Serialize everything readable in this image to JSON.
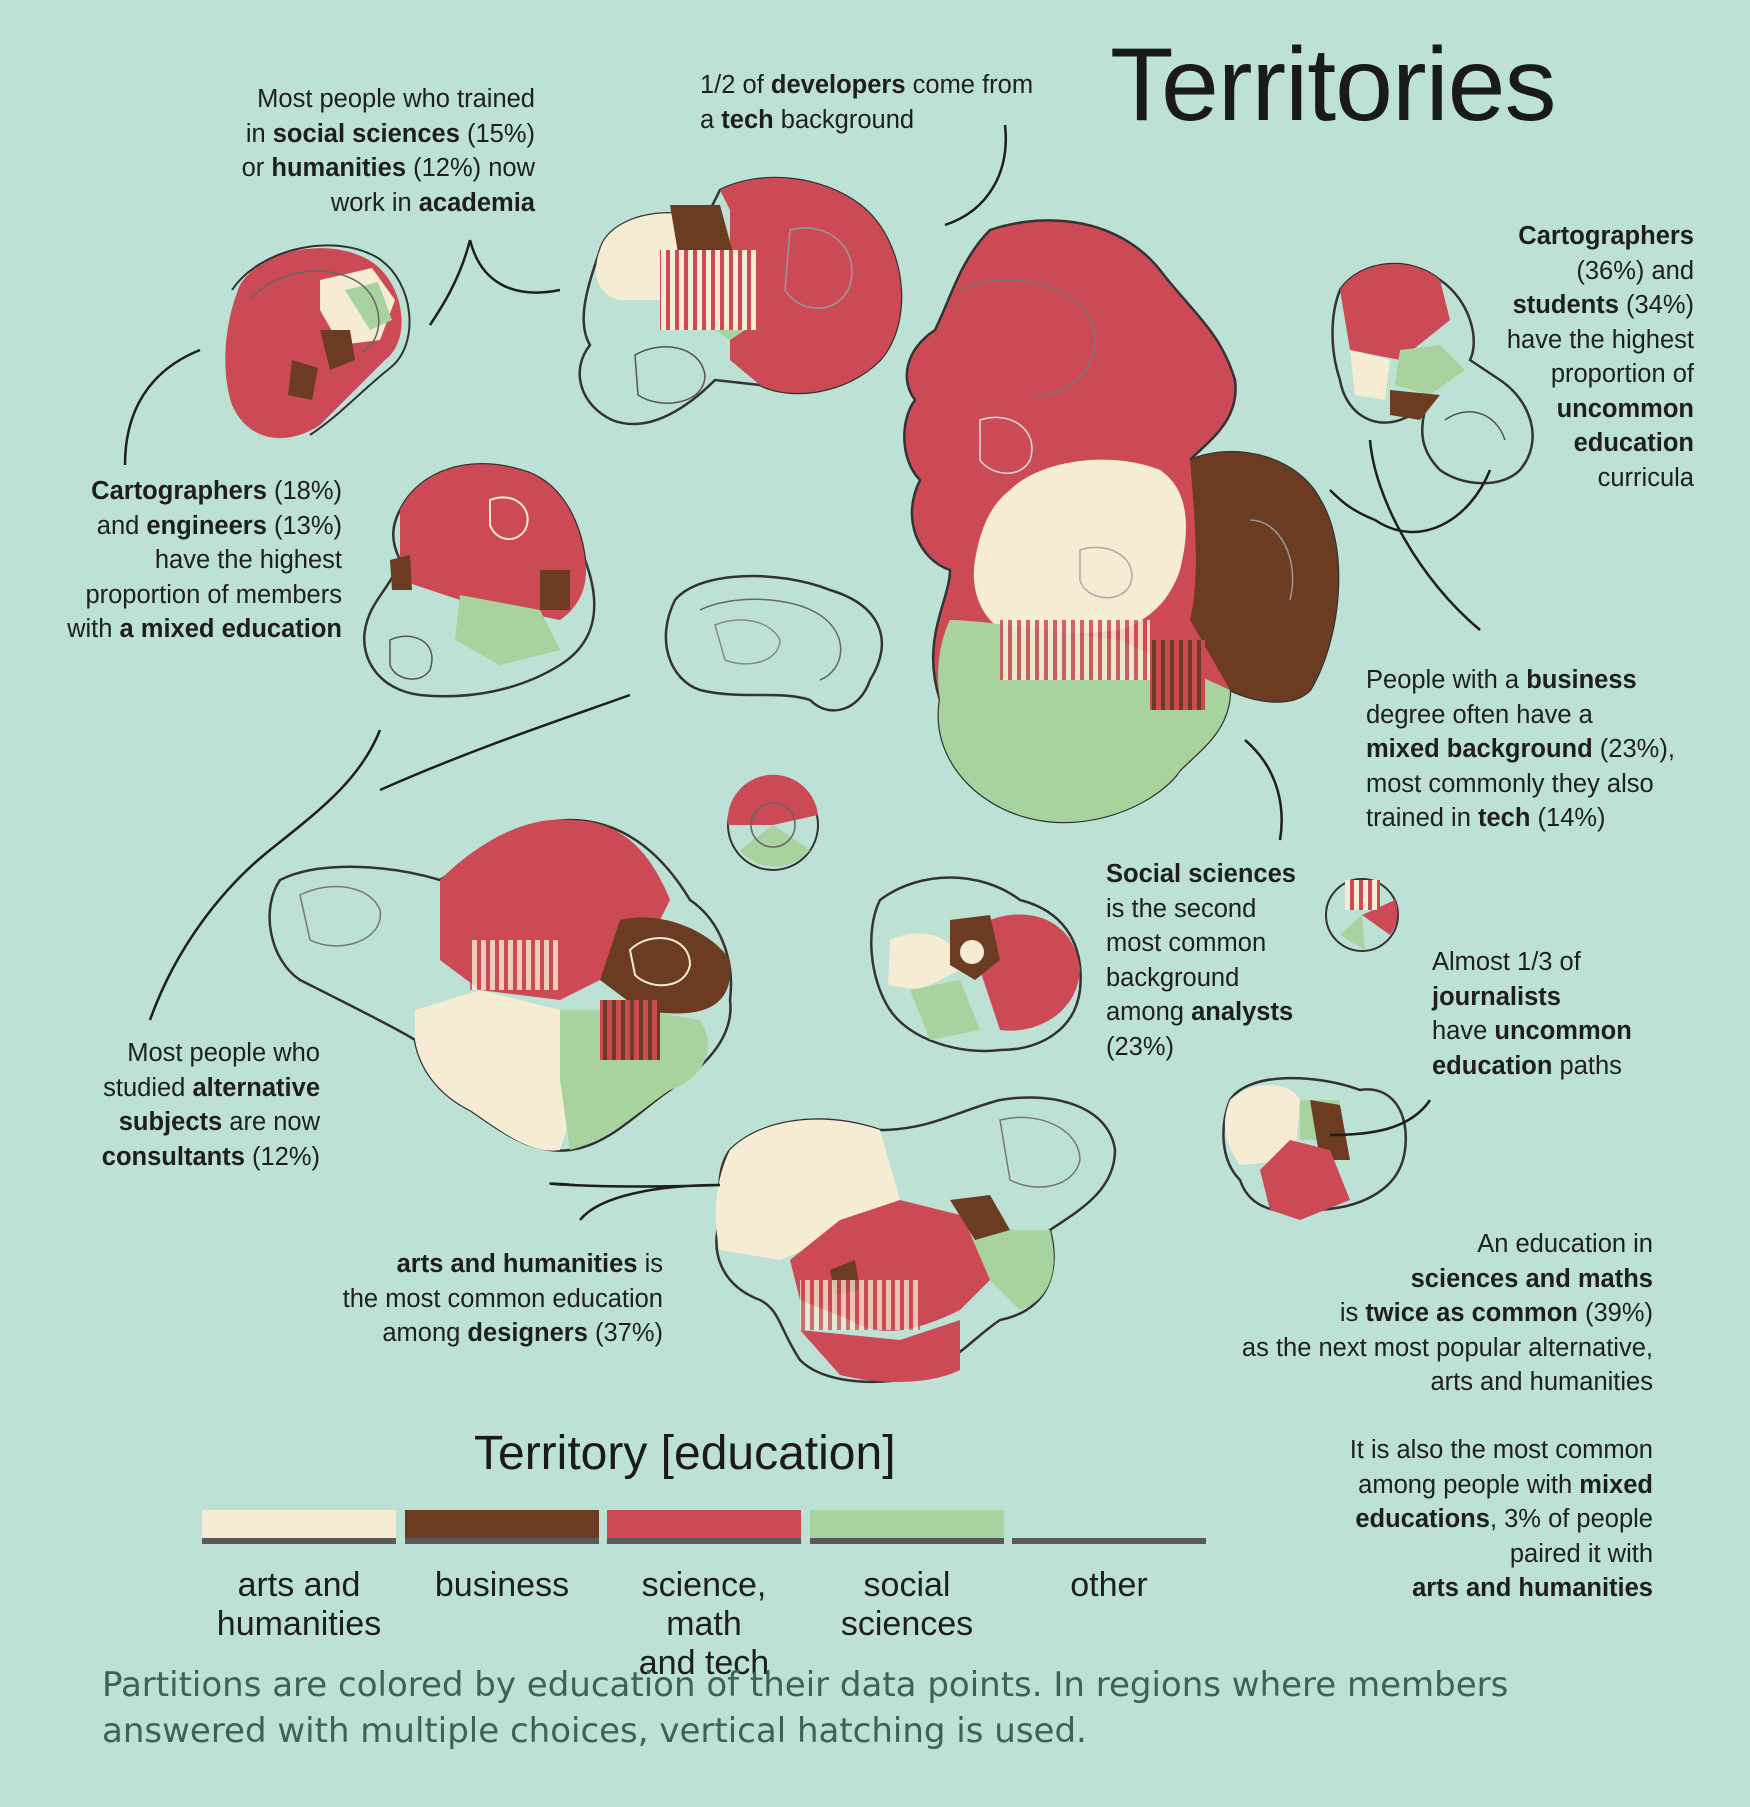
{
  "title": "Territories",
  "colors": {
    "background": "#bde1d5",
    "arts_and_humanities": "#f6ecd3",
    "business": "#6b3c22",
    "science_math_tech": "#cb4a56",
    "social_sciences": "#a8d29e",
    "other_outline": "#555555"
  },
  "annotations": {
    "social_sciences_academia": {
      "t1": "Most people who trained",
      "t2a": "in ",
      "t2b": "social sciences",
      "t2c": " (15%)",
      "t3a": "or ",
      "t3b": "humanities",
      "t3c": " (12%) now",
      "t4a": "work in ",
      "t4b": "academia"
    },
    "developers": {
      "t1a": "1/2 of ",
      "t1b": "developers",
      "t1c": " come from",
      "t2a": "a ",
      "t2b": "tech",
      "t2c": " background"
    },
    "cartographers_uncommon": {
      "t1": "Cartographers",
      "t2": "(36%) and",
      "t3a": "students",
      "t3b": " (34%)",
      "t4": "have the highest",
      "t5": "proportion of",
      "t6": "uncommon",
      "t7": "education",
      "t8": "curricula"
    },
    "cartographers_mixed": {
      "t1a": "Cartographers",
      "t1b": " (18%)",
      "t2a": "and ",
      "t2b": "engineers",
      "t2c": " (13%)",
      "t3": "have  the highest",
      "t4": "proportion of members",
      "t5a": "with ",
      "t5b": "a mixed education"
    },
    "business": {
      "t1a": "People with a ",
      "t1b": "business",
      "t2": "degree often have a",
      "t3a": "mixed background",
      "t3b": " (23%),",
      "t4": "most commonly they also",
      "t5a": "trained in ",
      "t5b": "tech",
      "t5c": " (14%)"
    },
    "analysts": {
      "t1": "Social sciences",
      "t2": "is the second",
      "t3": "most common",
      "t4": "background",
      "t5a": "among ",
      "t5b": "analysts",
      "t6": "(23%)"
    },
    "journalists": {
      "t1": "Almost 1/3 of",
      "t2": "journalists",
      "t3a": "have ",
      "t3b": "uncommon",
      "t4a": "education",
      "t4b": " paths"
    },
    "consultants": {
      "t1": "Most people who",
      "t2a": "studied ",
      "t2b": "alternative",
      "t3a": "subjects",
      "t3b": " are now",
      "t4a": "consultants",
      "t4b": " (12%)"
    },
    "designers": {
      "t1a": "arts and humanities",
      "t1b": " is",
      "t2": "the most common education",
      "t3a": "among ",
      "t3b": "designers",
      "t3c": " (37%)"
    },
    "sciences_maths": {
      "t1": "An education in",
      "t2": "sciences and maths",
      "t3a": "is ",
      "t3b": "twice as common",
      "t3c": " (39%)",
      "t4": "as the next most popular alternative,",
      "t5": "arts and humanities"
    },
    "mixed_educations": {
      "t1": "It is also the most common",
      "t2a": "among people with ",
      "t2b": "mixed",
      "t3a": "educations",
      "t3b": ", 3% of people",
      "t4": "paired it with",
      "t5": "arts and humanities"
    }
  },
  "legend": {
    "title": "Territory [education]",
    "items": [
      {
        "key": "arts",
        "l1": "arts and",
        "l2": "humanities"
      },
      {
        "key": "business",
        "l1": "business",
        "l2": ""
      },
      {
        "key": "science",
        "l1": "science, math",
        "l2": "and tech"
      },
      {
        "key": "social",
        "l1": "social",
        "l2": "sciences"
      },
      {
        "key": "other",
        "l1": "other",
        "l2": ""
      }
    ]
  },
  "footnote": "Partitions are colored by education of their data points. In regions where members answered with multiple choices, vertical hatching is used."
}
